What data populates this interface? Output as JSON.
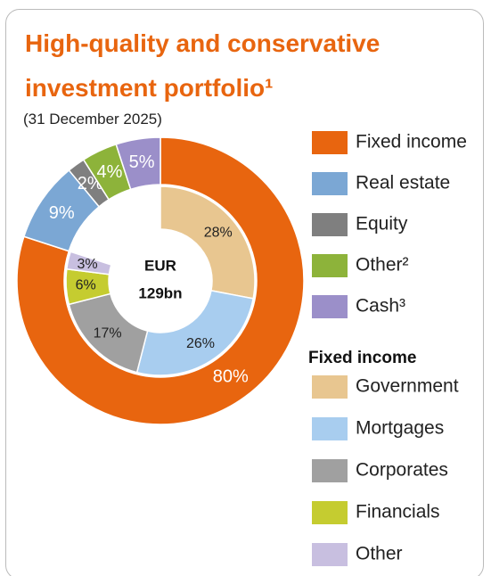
{
  "title": "High-quality and conservative investment portfolio¹",
  "subtitle": "(31 December 2025)",
  "center_text": [
    "EUR",
    "129bn"
  ],
  "chart_data": [
    {
      "type": "donut",
      "categories": [
        "Fixed income",
        "Real estate",
        "Equity",
        "Other²",
        "Cash³"
      ],
      "values": [
        80,
        9,
        2,
        4,
        5
      ],
      "value_labels": [
        "80%",
        "9%",
        "2%",
        "4%",
        "5%"
      ],
      "colors": [
        "#e8650f",
        "#7ba7d4",
        "#7f7f7f",
        "#8db33a",
        "#9b8fc9"
      ]
    },
    {
      "type": "donut",
      "legend_title": "Fixed income",
      "categories": [
        "Government",
        "Mortgages",
        "Corporates",
        "Financials",
        "Other"
      ],
      "values": [
        28,
        26,
        17,
        6,
        3
      ],
      "value_labels": [
        "28%",
        "26%",
        "17%",
        "6%",
        "3%"
      ],
      "colors": [
        "#e8c690",
        "#a8cdef",
        "#a0a0a0",
        "#c5cc30",
        "#c8bfe0"
      ]
    }
  ]
}
